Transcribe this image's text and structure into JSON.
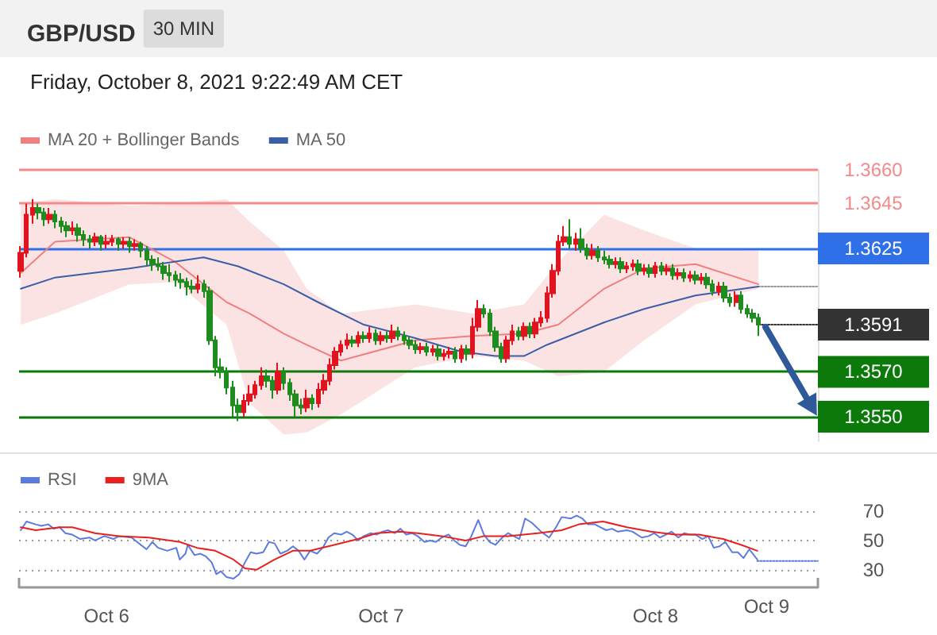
{
  "chart_data": [
    {
      "type": "candlestick",
      "title": "GBP/USD",
      "subtitle": "Friday, October 8, 2021 9:22:49 AM CET",
      "annotations": [
        "30 MIN"
      ],
      "legend": "top left",
      "tick_labels": "y",
      "marker": "none",
      "yticks": [
        {
          "value": 1.366,
          "label": "1.3660"
        },
        {
          "value": 1.3645,
          "label": "1.3645"
        },
        {
          "value": 1.3625,
          "label": "1.3625"
        },
        {
          "value": 1.3591,
          "label": "1.3591"
        },
        {
          "value": 1.357,
          "label": "1.3570"
        },
        {
          "value": 1.355,
          "label": "1.3550"
        }
      ],
      "xlim": [
        "2021-10-05T16:21",
        "2021-10-08T14:12"
      ],
      "ylim": [
        1.3539,
        1.366
      ],
      "ref_lines": [
        {
          "axis": "y",
          "value": 1.366,
          "color": "#f58a8a"
        },
        {
          "axis": "y",
          "value": 1.3645,
          "color": "#f58a8a"
        },
        {
          "axis": "y",
          "value": 1.3625,
          "color": "#2f6fe8"
        },
        {
          "axis": "y",
          "value": 1.357,
          "color": "#0b7a0b"
        },
        {
          "axis": "y",
          "value": 1.355,
          "color": "#0b7a0b"
        }
      ],
      "series": [
        {
          "type": "candlestick",
          "x": [
            "2021-10-05T16:30",
            "2021-10-05T17:00",
            "2021-10-05T17:30",
            "2021-10-05T18:00",
            "2021-10-05T18:30",
            "2021-10-05T19:00",
            "2021-10-05T19:30",
            "2021-10-05T20:00",
            "2021-10-05T20:30",
            "2021-10-05T21:00",
            "2021-10-05T21:30",
            "2021-10-05T22:00",
            "2021-10-05T22:30",
            "2021-10-05T23:00",
            "2021-10-05T23:30",
            "2021-10-06T00:00",
            "2021-10-06T00:30",
            "2021-10-06T01:00",
            "2021-10-06T01:30",
            "2021-10-06T02:00",
            "2021-10-06T02:30",
            "2021-10-06T03:00",
            "2021-10-06T03:30",
            "2021-10-06T04:00",
            "2021-10-06T04:30",
            "2021-10-06T05:00",
            "2021-10-06T05:30",
            "2021-10-06T06:00",
            "2021-10-06T06:30",
            "2021-10-06T07:00",
            "2021-10-06T07:30",
            "2021-10-06T08:00",
            "2021-10-06T08:30",
            "2021-10-06T09:00",
            "2021-10-06T09:30",
            "2021-10-06T10:00",
            "2021-10-06T10:30",
            "2021-10-06T11:00",
            "2021-10-06T11:30",
            "2021-10-06T12:00",
            "2021-10-06T12:30",
            "2021-10-06T13:00",
            "2021-10-06T13:30",
            "2021-10-06T14:00",
            "2021-10-06T14:30",
            "2021-10-06T15:00",
            "2021-10-06T15:30",
            "2021-10-06T16:00",
            "2021-10-06T16:30",
            "2021-10-06T17:00",
            "2021-10-06T17:30",
            "2021-10-06T18:00",
            "2021-10-06T18:30",
            "2021-10-06T19:00",
            "2021-10-06T19:30",
            "2021-10-06T20:00",
            "2021-10-06T20:30",
            "2021-10-06T21:00",
            "2021-10-06T21:30",
            "2021-10-06T22:00",
            "2021-10-06T22:30",
            "2021-10-06T23:00",
            "2021-10-06T23:30",
            "2021-10-07T00:00",
            "2021-10-07T00:30",
            "2021-10-07T01:00",
            "2021-10-07T01:30",
            "2021-10-07T02:00",
            "2021-10-07T02:30",
            "2021-10-07T03:00",
            "2021-10-07T03:30",
            "2021-10-07T04:00",
            "2021-10-07T04:30",
            "2021-10-07T05:00",
            "2021-10-07T05:30",
            "2021-10-07T06:00",
            "2021-10-07T06:30",
            "2021-10-07T07:00",
            "2021-10-07T07:30",
            "2021-10-07T08:00",
            "2021-10-07T08:30",
            "2021-10-07T09:00",
            "2021-10-07T09:30",
            "2021-10-07T10:00",
            "2021-10-07T10:30",
            "2021-10-07T11:00",
            "2021-10-07T11:30",
            "2021-10-07T12:00",
            "2021-10-07T12:30",
            "2021-10-07T13:00",
            "2021-10-07T13:30",
            "2021-10-07T14:00",
            "2021-10-07T14:30",
            "2021-10-07T15:00",
            "2021-10-07T15:30",
            "2021-10-07T16:00",
            "2021-10-07T16:30",
            "2021-10-07T17:00",
            "2021-10-07T17:30",
            "2021-10-07T18:00",
            "2021-10-07T18:30",
            "2021-10-07T19:00",
            "2021-10-07T19:30",
            "2021-10-07T20:00",
            "2021-10-07T20:30",
            "2021-10-07T21:00",
            "2021-10-07T21:30",
            "2021-10-07T22:00",
            "2021-10-07T22:30",
            "2021-10-07T23:00",
            "2021-10-07T23:30",
            "2021-10-08T00:00",
            "2021-10-08T00:30",
            "2021-10-08T01:00",
            "2021-10-08T01:30",
            "2021-10-08T02:00",
            "2021-10-08T02:30",
            "2021-10-08T03:00",
            "2021-10-08T03:30",
            "2021-10-08T04:00",
            "2021-10-08T04:30",
            "2021-10-08T05:00",
            "2021-10-08T05:30",
            "2021-10-08T06:00",
            "2021-10-08T06:30",
            "2021-10-08T07:00",
            "2021-10-08T07:30",
            "2021-10-08T08:00",
            "2021-10-08T08:30",
            "2021-10-08T09:00"
          ],
          "ohlc": [
            [
              1.3615,
              1.3626,
              1.3612,
              1.3623
            ],
            [
              1.3623,
              1.3645,
              1.3621,
              1.364
            ],
            [
              1.364,
              1.3647,
              1.3636,
              1.3643
            ],
            [
              1.3643,
              1.3645,
              1.3638,
              1.3641
            ],
            [
              1.3641,
              1.3643,
              1.3635,
              1.3638
            ],
            [
              1.3638,
              1.3643,
              1.3636,
              1.364
            ],
            [
              1.364,
              1.3642,
              1.3634,
              1.3637
            ],
            [
              1.3637,
              1.3639,
              1.3632,
              1.3635
            ],
            [
              1.3635,
              1.3637,
              1.363,
              1.3633
            ],
            [
              1.3633,
              1.3637,
              1.3631,
              1.3634
            ],
            [
              1.3634,
              1.3636,
              1.3628,
              1.3631
            ],
            [
              1.3631,
              1.3633,
              1.3626,
              1.3629
            ],
            [
              1.3629,
              1.3631,
              1.3625,
              1.3628
            ],
            [
              1.3628,
              1.3632,
              1.3626,
              1.363
            ],
            [
              1.363,
              1.3631,
              1.3624,
              1.3627
            ],
            [
              1.3627,
              1.3631,
              1.3625,
              1.3628
            ],
            [
              1.3628,
              1.3631,
              1.3626,
              1.3629
            ],
            [
              1.3629,
              1.363,
              1.3624,
              1.3627
            ],
            [
              1.3627,
              1.363,
              1.3625,
              1.3628
            ],
            [
              1.3628,
              1.363,
              1.3623,
              1.3626
            ],
            [
              1.3626,
              1.3629,
              1.3624,
              1.3627
            ],
            [
              1.3627,
              1.3628,
              1.3621,
              1.3624
            ],
            [
              1.3624,
              1.3626,
              1.3617,
              1.362
            ],
            [
              1.362,
              1.3622,
              1.3615,
              1.3618
            ],
            [
              1.3618,
              1.3621,
              1.3615,
              1.3617
            ],
            [
              1.3617,
              1.3619,
              1.3611,
              1.3614
            ],
            [
              1.3614,
              1.3618,
              1.361,
              1.3613
            ],
            [
              1.3613,
              1.3615,
              1.3608,
              1.3611
            ],
            [
              1.3611,
              1.3614,
              1.3607,
              1.361
            ],
            [
              1.361,
              1.3612,
              1.3604,
              1.3608
            ],
            [
              1.3608,
              1.3611,
              1.3605,
              1.3607
            ],
            [
              1.3607,
              1.3613,
              1.3605,
              1.3609
            ],
            [
              1.3609,
              1.3611,
              1.3603,
              1.3606
            ],
            [
              1.3606,
              1.3608,
              1.3582,
              1.3584
            ],
            [
              1.3584,
              1.3586,
              1.3568,
              1.3572
            ],
            [
              1.3572,
              1.3576,
              1.3567,
              1.357
            ],
            [
              1.357,
              1.3572,
              1.356,
              1.3563
            ],
            [
              1.3563,
              1.3566,
              1.355,
              1.3555
            ],
            [
              1.3555,
              1.3558,
              1.3548,
              1.3552
            ],
            [
              1.3552,
              1.356,
              1.355,
              1.3557
            ],
            [
              1.3557,
              1.3564,
              1.3555,
              1.356
            ],
            [
              1.356,
              1.3566,
              1.3558,
              1.3564
            ],
            [
              1.3564,
              1.3572,
              1.3562,
              1.3568
            ],
            [
              1.3568,
              1.3571,
              1.3563,
              1.3566
            ],
            [
              1.3566,
              1.3568,
              1.3558,
              1.3562
            ],
            [
              1.3562,
              1.3574,
              1.356,
              1.357
            ],
            [
              1.357,
              1.3572,
              1.3562,
              1.3565
            ],
            [
              1.3565,
              1.3567,
              1.3557,
              1.356
            ],
            [
              1.356,
              1.3562,
              1.355,
              1.3555
            ],
            [
              1.3555,
              1.3558,
              1.3551,
              1.3554
            ],
            [
              1.3554,
              1.3562,
              1.3552,
              1.3558
            ],
            [
              1.3558,
              1.356,
              1.3553,
              1.3556
            ],
            [
              1.3556,
              1.3565,
              1.3554,
              1.3562
            ],
            [
              1.3562,
              1.3569,
              1.356,
              1.3566
            ],
            [
              1.3566,
              1.3576,
              1.3564,
              1.3573
            ],
            [
              1.3573,
              1.3581,
              1.3571,
              1.3579
            ],
            [
              1.3579,
              1.3584,
              1.3577,
              1.3582
            ],
            [
              1.3582,
              1.3587,
              1.358,
              1.3584
            ],
            [
              1.3584,
              1.3586,
              1.3581,
              1.3583
            ],
            [
              1.3583,
              1.3588,
              1.3581,
              1.3586
            ],
            [
              1.3586,
              1.3588,
              1.3583,
              1.3585
            ],
            [
              1.3585,
              1.359,
              1.3583,
              1.3587
            ],
            [
              1.3587,
              1.3589,
              1.3582,
              1.3584
            ],
            [
              1.3584,
              1.3588,
              1.3582,
              1.3586
            ],
            [
              1.3586,
              1.3588,
              1.3583,
              1.3585
            ],
            [
              1.3585,
              1.3591,
              1.3583,
              1.3588
            ],
            [
              1.3588,
              1.359,
              1.3584,
              1.3586
            ],
            [
              1.3586,
              1.3588,
              1.3582,
              1.3584
            ],
            [
              1.3584,
              1.3586,
              1.358,
              1.3582
            ],
            [
              1.3582,
              1.3584,
              1.3578,
              1.358
            ],
            [
              1.358,
              1.3583,
              1.3578,
              1.3581
            ],
            [
              1.3581,
              1.3583,
              1.3577,
              1.3579
            ],
            [
              1.3579,
              1.3582,
              1.3577,
              1.358
            ],
            [
              1.358,
              1.3582,
              1.3575,
              1.3577
            ],
            [
              1.3577,
              1.358,
              1.3575,
              1.3578
            ],
            [
              1.3578,
              1.3581,
              1.3576,
              1.3579
            ],
            [
              1.3579,
              1.3581,
              1.3574,
              1.3576
            ],
            [
              1.3576,
              1.3582,
              1.3574,
              1.358
            ],
            [
              1.358,
              1.3582,
              1.3575,
              1.3578
            ],
            [
              1.3578,
              1.3594,
              1.3576,
              1.359
            ],
            [
              1.359,
              1.3602,
              1.3588,
              1.3598
            ],
            [
              1.3598,
              1.36,
              1.3594,
              1.3596
            ],
            [
              1.3596,
              1.3598,
              1.3586,
              1.3588
            ],
            [
              1.3588,
              1.359,
              1.3579,
              1.3581
            ],
            [
              1.3581,
              1.3583,
              1.3574,
              1.3576
            ],
            [
              1.3576,
              1.3586,
              1.3574,
              1.3584
            ],
            [
              1.3584,
              1.3591,
              1.3582,
              1.3588
            ],
            [
              1.3588,
              1.359,
              1.3584,
              1.3586
            ],
            [
              1.3586,
              1.3592,
              1.3584,
              1.359
            ],
            [
              1.359,
              1.3592,
              1.3585,
              1.3587
            ],
            [
              1.3587,
              1.3594,
              1.3585,
              1.3592
            ],
            [
              1.3592,
              1.3597,
              1.359,
              1.3594
            ],
            [
              1.3594,
              1.3608,
              1.3592,
              1.3605
            ],
            [
              1.3605,
              1.3618,
              1.3603,
              1.3615
            ],
            [
              1.3615,
              1.3631,
              1.3613,
              1.3628
            ],
            [
              1.3628,
              1.3635,
              1.3626,
              1.363
            ],
            [
              1.363,
              1.3638,
              1.3625,
              1.3627
            ],
            [
              1.3627,
              1.3632,
              1.3624,
              1.3629
            ],
            [
              1.3629,
              1.3634,
              1.3623,
              1.3625
            ],
            [
              1.3625,
              1.3627,
              1.362,
              1.3622
            ],
            [
              1.3622,
              1.3627,
              1.362,
              1.3624
            ],
            [
              1.3624,
              1.3626,
              1.3619,
              1.3621
            ],
            [
              1.3621,
              1.3624,
              1.3618,
              1.362
            ],
            [
              1.362,
              1.3622,
              1.3616,
              1.3618
            ],
            [
              1.3618,
              1.3621,
              1.3616,
              1.3619
            ],
            [
              1.3619,
              1.3621,
              1.3614,
              1.3616
            ],
            [
              1.3616,
              1.3619,
              1.3614,
              1.3617
            ],
            [
              1.3617,
              1.362,
              1.3615,
              1.3618
            ],
            [
              1.3618,
              1.362,
              1.3613,
              1.3615
            ],
            [
              1.3615,
              1.3618,
              1.3613,
              1.3616
            ],
            [
              1.3616,
              1.3618,
              1.3612,
              1.3614
            ],
            [
              1.3614,
              1.3619,
              1.3612,
              1.3617
            ],
            [
              1.3617,
              1.3619,
              1.3613,
              1.3615
            ],
            [
              1.3615,
              1.3618,
              1.3613,
              1.3616
            ],
            [
              1.3616,
              1.3618,
              1.3611,
              1.3613
            ],
            [
              1.3613,
              1.3616,
              1.3611,
              1.3614
            ],
            [
              1.3614,
              1.3616,
              1.361,
              1.3612
            ],
            [
              1.3612,
              1.3615,
              1.361,
              1.3613
            ],
            [
              1.3613,
              1.3615,
              1.3609,
              1.3611
            ],
            [
              1.3611,
              1.3614,
              1.3609,
              1.3612
            ],
            [
              1.3612,
              1.3614,
              1.3607,
              1.3609
            ],
            [
              1.3609,
              1.3611,
              1.3604,
              1.3606
            ],
            [
              1.3606,
              1.361,
              1.3604,
              1.3608
            ],
            [
              1.3608,
              1.361,
              1.3601,
              1.3603
            ],
            [
              1.3603,
              1.3605,
              1.3599,
              1.3601
            ],
            [
              1.3601,
              1.3606,
              1.3599,
              1.3604
            ],
            [
              1.3604,
              1.3606,
              1.3596,
              1.3598
            ],
            [
              1.3598,
              1.36,
              1.3594,
              1.3596
            ],
            [
              1.3596,
              1.3598,
              1.3592,
              1.3594
            ],
            [
              1.3594,
              1.3596,
              1.3586,
              1.3591
            ]
          ],
          "colors": [
            "#e0141e",
            "#e0141e",
            "#e0141e",
            "#1e8c1e",
            "#1e8c1e",
            "#e0141e",
            "#1e8c1e",
            "#1e8c1e",
            "#1e8c1e",
            "#e0141e",
            "#1e8c1e",
            "#1e8c1e",
            "#1e8c1e",
            "#e0141e",
            "#1e8c1e",
            "#e0141e",
            "#e0141e",
            "#1e8c1e",
            "#e0141e",
            "#1e8c1e",
            "#e0141e",
            "#1e8c1e",
            "#1e8c1e",
            "#1e8c1e",
            "#1e8c1e",
            "#1e8c1e",
            "#1e8c1e",
            "#1e8c1e",
            "#1e8c1e",
            "#1e8c1e",
            "#1e8c1e",
            "#e0141e",
            "#1e8c1e",
            "#1e8c1e",
            "#1e8c1e",
            "#1e8c1e",
            "#1e8c1e",
            "#1e8c1e",
            "#1e8c1e",
            "#e0141e",
            "#e0141e",
            "#e0141e",
            "#e0141e",
            "#1e8c1e",
            "#1e8c1e",
            "#e0141e",
            "#1e8c1e",
            "#1e8c1e",
            "#1e8c1e",
            "#1e8c1e",
            "#e0141e",
            "#1e8c1e",
            "#e0141e",
            "#e0141e",
            "#e0141e",
            "#e0141e",
            "#e0141e",
            "#e0141e",
            "#1e8c1e",
            "#e0141e",
            "#1e8c1e",
            "#e0141e",
            "#1e8c1e",
            "#e0141e",
            "#1e8c1e",
            "#e0141e",
            "#1e8c1e",
            "#1e8c1e",
            "#1e8c1e",
            "#1e8c1e",
            "#e0141e",
            "#1e8c1e",
            "#e0141e",
            "#1e8c1e",
            "#e0141e",
            "#e0141e",
            "#1e8c1e",
            "#e0141e",
            "#1e8c1e",
            "#e0141e",
            "#e0141e",
            "#1e8c1e",
            "#1e8c1e",
            "#1e8c1e",
            "#1e8c1e",
            "#e0141e",
            "#e0141e",
            "#1e8c1e",
            "#e0141e",
            "#1e8c1e",
            "#e0141e",
            "#e0141e",
            "#e0141e",
            "#e0141e",
            "#e0141e",
            "#e0141e",
            "#1e8c1e",
            "#e0141e",
            "#1e8c1e",
            "#1e8c1e",
            "#e0141e",
            "#1e8c1e",
            "#1e8c1e",
            "#1e8c1e",
            "#e0141e",
            "#1e8c1e",
            "#e0141e",
            "#e0141e",
            "#1e8c1e",
            "#e0141e",
            "#1e8c1e",
            "#e0141e",
            "#1e8c1e",
            "#e0141e",
            "#1e8c1e",
            "#e0141e",
            "#1e8c1e",
            "#e0141e",
            "#1e8c1e",
            "#e0141e",
            "#1e8c1e",
            "#1e8c1e",
            "#e0141e",
            "#1e8c1e",
            "#1e8c1e",
            "#e0141e",
            "#1e8c1e",
            "#1e8c1e",
            "#1e8c1e",
            "#1e8c1e"
          ]
        },
        {
          "name": "MA 20 + Bollinger Bands",
          "type": "line",
          "color": "#f08080",
          "x": [
            "2021-10-05T16:30",
            "2021-10-05T19:30",
            "2021-10-06T02:00",
            "2021-10-06T06:00",
            "2021-10-06T10:30",
            "2021-10-06T12:30",
            "2021-10-06T15:30",
            "2021-10-06T17:30",
            "2021-10-06T20:30",
            "2021-10-07T03:00",
            "2021-10-07T08:00",
            "2021-10-07T12:30",
            "2021-10-07T15:30",
            "2021-10-07T19:30",
            "2021-10-07T23:00",
            "2021-10-08T03:30",
            "2021-10-08T09:00"
          ],
          "values": [
            1.3614,
            1.3628,
            1.363,
            1.3619,
            1.3601,
            1.3596,
            1.3587,
            1.3582,
            1.3575,
            1.3584,
            1.3586,
            1.3587,
            1.3591,
            1.3607,
            1.3616,
            1.3618,
            1.3609
          ],
          "upper": [
            1.3645,
            1.3647,
            1.3644,
            1.3645,
            1.3647,
            1.3637,
            1.3624,
            1.3607,
            1.3596,
            1.36,
            1.3596,
            1.36,
            1.3619,
            1.364,
            1.3633,
            1.3625,
            1.3624
          ],
          "lower": [
            1.3591,
            1.3596,
            1.3609,
            1.361,
            1.3591,
            1.3556,
            1.3542,
            1.3543,
            1.3551,
            1.3572,
            1.3577,
            1.3575,
            1.3568,
            1.357,
            1.3584,
            1.36,
            1.3607
          ]
        },
        {
          "type": "line",
          "color": "#999999",
          "line_style": "dotted",
          "x": [
            "2021-10-08T09:00",
            "2021-10-08T14:12"
          ],
          "values": [
            1.3608,
            1.3608
          ]
        },
        {
          "type": "line",
          "color": "#333333",
          "line_style": "dotted",
          "x": [
            "2021-10-08T09:00",
            "2021-10-08T14:12"
          ],
          "values": [
            1.3591,
            1.3591
          ]
        },
        {
          "name": "MA 50",
          "type": "line",
          "color": "#3a5fa8",
          "x": [
            "2021-10-05T16:30",
            "2021-10-05T19:30",
            "2021-10-06T02:00",
            "2021-10-06T08:30",
            "2021-10-06T11:30",
            "2021-10-06T15:30",
            "2021-10-06T18:30",
            "2021-10-06T22:30",
            "2021-10-07T03:00",
            "2021-10-07T07:00",
            "2021-10-07T10:00",
            "2021-10-07T12:30",
            "2021-10-07T14:30",
            "2021-10-07T19:30",
            "2021-10-07T23:00",
            "2021-10-08T03:30",
            "2021-10-08T09:00"
          ],
          "values": [
            1.3607,
            1.3612,
            1.3616,
            1.3621,
            1.3617,
            1.3609,
            1.3601,
            1.3591,
            1.3585,
            1.3579,
            1.3577,
            1.3577,
            1.3582,
            1.3592,
            1.3598,
            1.3604,
            1.3608
          ]
        }
      ]
    },
    {
      "type": "line",
      "legend": "top left",
      "marker": "none",
      "grid": "y",
      "annotations": [
        "Oct 9"
      ],
      "xlim": [
        "2021-10-05T16:21",
        "2021-10-08T14:12"
      ],
      "xticks": [
        {
          "value": "2021-10-06T00:00",
          "label": "Oct 6"
        },
        {
          "value": "2021-10-07T00:00",
          "label": "Oct 7"
        },
        {
          "value": "2021-10-08T00:00",
          "label": "Oct 8"
        }
      ],
      "ylim": [
        18,
        70
      ],
      "yticks": [
        30,
        50,
        70
      ],
      "series": [
        {
          "color": "#5b7be0",
          "line_style": "dotted",
          "x": [
            "2021-10-08T08:54",
            "2021-10-08T14:12"
          ],
          "values": [
            36,
            36
          ]
        },
        {
          "name": "RSI",
          "color": "#5b7be0",
          "x": [
            "2021-10-05T16:30",
            "2021-10-05T17:00",
            "2021-10-05T17:48",
            "2021-10-05T18:18",
            "2021-10-05T18:54",
            "2021-10-05T19:24",
            "2021-10-05T19:54",
            "2021-10-05T20:24",
            "2021-10-05T21:00",
            "2021-10-05T21:42",
            "2021-10-05T22:30",
            "2021-10-05T23:00",
            "2021-10-05T23:48",
            "2021-10-06T00:36",
            "2021-10-06T01:06",
            "2021-10-06T02:12",
            "2021-10-06T03:00",
            "2021-10-06T03:30",
            "2021-10-06T04:00",
            "2021-10-06T04:30",
            "2021-10-06T05:18",
            "2021-10-06T06:06",
            "2021-10-06T06:24",
            "2021-10-06T06:54",
            "2021-10-06T07:06",
            "2021-10-06T07:42",
            "2021-10-06T08:12",
            "2021-10-06T08:42",
            "2021-10-06T09:12",
            "2021-10-06T09:36",
            "2021-10-06T10:00",
            "2021-10-06T10:30",
            "2021-10-06T11:06",
            "2021-10-06T11:36",
            "2021-10-06T12:06",
            "2021-10-06T12:36",
            "2021-10-06T13:06",
            "2021-10-06T13:42",
            "2021-10-06T14:12",
            "2021-10-06T14:42",
            "2021-10-06T15:12",
            "2021-10-06T15:48",
            "2021-10-06T16:18",
            "2021-10-06T16:48",
            "2021-10-06T17:18",
            "2021-10-06T17:48",
            "2021-10-06T18:24",
            "2021-10-06T18:54",
            "2021-10-06T19:24",
            "2021-10-06T19:54",
            "2021-10-06T20:30",
            "2021-10-06T21:00",
            "2021-10-06T21:30",
            "2021-10-06T22:00",
            "2021-10-06T22:30",
            "2021-10-06T23:06",
            "2021-10-06T23:36",
            "2021-10-07T00:06",
            "2021-10-07T00:36",
            "2021-10-07T01:12",
            "2021-10-07T01:42",
            "2021-10-07T02:12",
            "2021-10-07T02:42",
            "2021-10-07T03:12",
            "2021-10-07T03:48",
            "2021-10-07T04:18",
            "2021-10-07T04:48",
            "2021-10-07T05:18",
            "2021-10-07T05:54",
            "2021-10-07T06:24",
            "2021-10-07T06:54",
            "2021-10-07T07:24",
            "2021-10-07T07:54",
            "2021-10-07T08:30",
            "2021-10-07T09:00",
            "2021-10-07T09:30",
            "2021-10-07T10:00",
            "2021-10-07T10:36",
            "2021-10-07T11:06",
            "2021-10-07T11:36",
            "2021-10-07T12:06",
            "2021-10-07T12:36",
            "2021-10-07T13:12",
            "2021-10-07T14:00",
            "2021-10-07T14:42",
            "2021-10-07T15:18",
            "2021-10-07T15:48",
            "2021-10-07T16:36",
            "2021-10-07T17:06",
            "2021-10-07T17:36",
            "2021-10-07T18:06",
            "2021-10-07T18:42",
            "2021-10-07T19:12",
            "2021-10-07T19:42",
            "2021-10-07T20:12",
            "2021-10-07T20:42",
            "2021-10-07T21:30",
            "2021-10-07T22:00",
            "2021-10-07T22:48",
            "2021-10-07T23:24",
            "2021-10-07T23:54",
            "2021-10-08T00:24",
            "2021-10-08T00:54",
            "2021-10-08T01:24",
            "2021-10-08T02:00",
            "2021-10-08T02:30",
            "2021-10-08T03:00",
            "2021-10-08T03:30",
            "2021-10-08T04:06",
            "2021-10-08T04:36",
            "2021-10-08T05:06",
            "2021-10-08T05:36",
            "2021-10-08T06:06",
            "2021-10-08T06:42",
            "2021-10-08T07:12",
            "2021-10-08T07:42",
            "2021-10-08T08:12",
            "2021-10-08T08:54"
          ],
          "values": [
            57,
            63,
            61,
            60,
            61,
            58,
            59,
            55,
            54,
            51,
            52,
            50,
            53,
            51,
            53,
            52,
            47,
            44,
            49,
            45,
            43,
            45,
            37,
            41,
            47,
            40,
            41,
            39,
            35,
            27,
            29,
            25,
            24,
            27,
            35,
            42,
            41,
            42,
            49,
            48,
            41,
            43,
            46,
            43,
            37,
            43,
            41,
            45,
            52,
            55,
            54,
            56,
            54,
            50,
            53,
            55,
            54,
            56,
            57,
            55,
            58,
            54,
            55,
            53,
            49,
            50,
            49,
            52,
            54,
            50,
            47,
            46,
            53,
            64,
            54,
            49,
            47,
            52,
            55,
            53,
            51,
            65,
            62,
            56,
            52,
            59,
            66,
            65,
            67,
            65,
            61,
            61,
            59,
            57,
            58,
            56,
            57,
            56,
            52,
            53,
            55,
            52,
            54,
            56,
            52,
            55,
            54,
            54,
            51,
            53,
            45,
            46,
            49,
            42,
            42,
            38,
            44,
            37
          ]
        },
        {
          "name": "9MA",
          "color": "#e8211e",
          "x": [
            "2021-10-05T16:30",
            "2021-10-05T17:48",
            "2021-10-05T19:54",
            "2021-10-05T21:00",
            "2021-10-05T23:00",
            "2021-10-06T01:06",
            "2021-10-06T03:42",
            "2021-10-06T06:24",
            "2021-10-06T07:54",
            "2021-10-06T09:30",
            "2021-10-06T11:06",
            "2021-10-06T12:06",
            "2021-10-06T13:06",
            "2021-10-06T14:42",
            "2021-10-06T16:18",
            "2021-10-06T17:48",
            "2021-10-06T19:54",
            "2021-10-06T22:00",
            "2021-10-06T23:36",
            "2021-10-07T01:42",
            "2021-10-07T03:12",
            "2021-10-07T05:18",
            "2021-10-07T07:24",
            "2021-10-07T09:00",
            "2021-10-07T11:06",
            "2021-10-07T13:42",
            "2021-10-07T15:48",
            "2021-10-07T17:18",
            "2021-10-07T19:24",
            "2021-10-07T21:30",
            "2021-10-07T23:36",
            "2021-10-08T01:42",
            "2021-10-08T03:48",
            "2021-10-08T05:54",
            "2021-10-08T07:30",
            "2021-10-08T08:54"
          ],
          "values": [
            59,
            57,
            59,
            59,
            55,
            53,
            52,
            49,
            45,
            43,
            37,
            31,
            30,
            37,
            43,
            43,
            47,
            51,
            55,
            56,
            55,
            53,
            50,
            53,
            53,
            55,
            57,
            61,
            63,
            59,
            56,
            54,
            54,
            51,
            47,
            43
          ]
        }
      ]
    }
  ]
}
